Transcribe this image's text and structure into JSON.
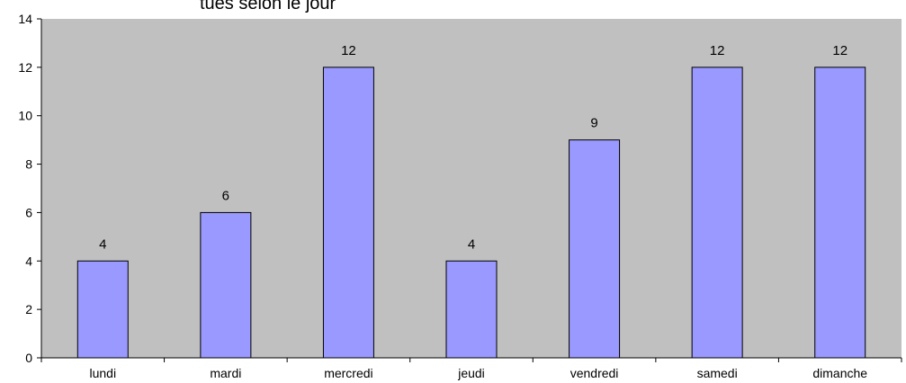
{
  "chart_data": {
    "type": "bar",
    "title": "tués selon le jour",
    "categories": [
      "lundi",
      "mardi",
      "mercredi",
      "jeudi",
      "vendredi",
      "samedi",
      "dimanche"
    ],
    "values": [
      4,
      6,
      12,
      4,
      9,
      12,
      12
    ],
    "ylim": [
      0,
      14
    ],
    "yticks": [
      0,
      2,
      4,
      6,
      8,
      10,
      12,
      14
    ],
    "grid": false,
    "data_labels": true,
    "colors": {
      "plot_background": "#c0c0c0",
      "bar_fill": "#9999ff",
      "bar_stroke": "#000000"
    }
  }
}
